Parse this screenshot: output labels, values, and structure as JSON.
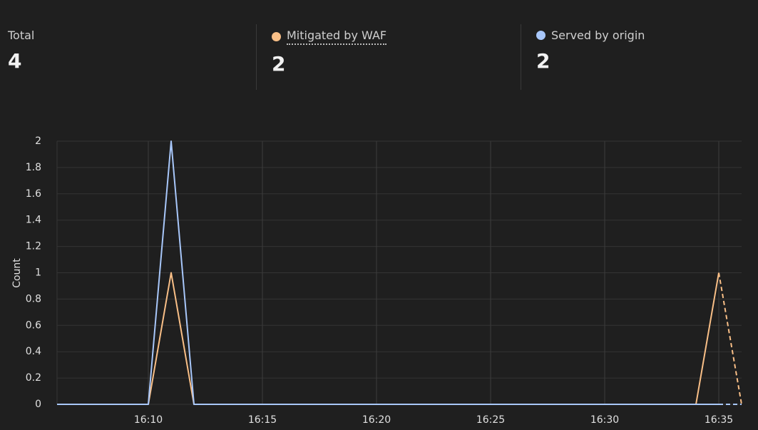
{
  "stats": [
    {
      "label": "Total",
      "value": "4"
    },
    {
      "label": "Mitigated by WAF",
      "value": "2",
      "color": "#f9bf87"
    },
    {
      "label": "Served by origin",
      "value": "2",
      "color": "#a8c7fa"
    }
  ],
  "chart_data": {
    "type": "line",
    "y_label": "Count",
    "x": [
      966,
      967,
      968,
      969,
      970,
      971,
      972,
      973,
      974,
      975,
      976,
      977,
      978,
      979,
      980,
      981,
      982,
      983,
      984,
      985,
      986,
      987,
      988,
      989,
      990,
      991,
      992,
      993,
      994,
      995,
      996
    ],
    "xlim": [
      966,
      996
    ],
    "xticks": [
      {
        "value": 970,
        "label": "16:10"
      },
      {
        "value": 975,
        "label": "16:15"
      },
      {
        "value": 980,
        "label": "16:20"
      },
      {
        "value": 985,
        "label": "16:25"
      },
      {
        "value": 990,
        "label": "16:30"
      },
      {
        "value": 995,
        "label": "16:35"
      }
    ],
    "ylim": [
      0,
      2
    ],
    "yticks": [
      0,
      0.2,
      0.4,
      0.6,
      0.8,
      1,
      1.2,
      1.4,
      1.6,
      1.8,
      2
    ],
    "grid": true,
    "last_segment_dashed": true,
    "series": [
      {
        "name": "Mitigated by WAF",
        "color": "#f9bf87",
        "values": [
          0,
          0,
          0,
          0,
          0,
          1,
          0,
          0,
          0,
          0,
          0,
          0,
          0,
          0,
          0,
          0,
          0,
          0,
          0,
          0,
          0,
          0,
          0,
          0,
          0,
          0,
          0,
          0,
          0,
          1,
          0
        ]
      },
      {
        "name": "Served by origin",
        "color": "#a8c7fa",
        "values": [
          0,
          0,
          0,
          0,
          0,
          2,
          0,
          0,
          0,
          0,
          0,
          0,
          0,
          0,
          0,
          0,
          0,
          0,
          0,
          0,
          0,
          0,
          0,
          0,
          0,
          0,
          0,
          0,
          0,
          0,
          0
        ]
      }
    ]
  }
}
